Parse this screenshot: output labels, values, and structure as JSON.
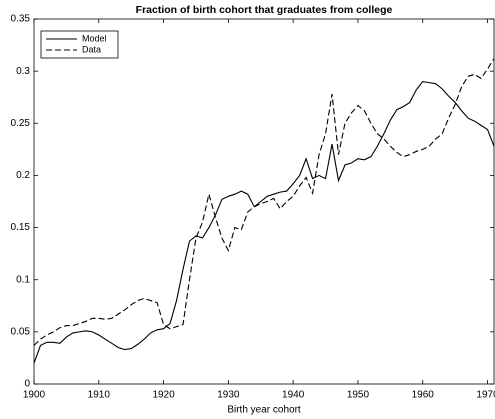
{
  "chart_data": {
    "type": "line",
    "title": "Fraction of birth cohort that graduates from college",
    "x_label": "Birth year cohort",
    "x": [
      1900,
      1901,
      1902,
      1903,
      1904,
      1905,
      1906,
      1907,
      1908,
      1909,
      1910,
      1911,
      1912,
      1913,
      1914,
      1915,
      1916,
      1917,
      1918,
      1919,
      1920,
      1921,
      1922,
      1923,
      1924,
      1925,
      1926,
      1927,
      1928,
      1929,
      1930,
      1931,
      1932,
      1933,
      1934,
      1935,
      1936,
      1937,
      1938,
      1939,
      1940,
      1941,
      1942,
      1943,
      1944,
      1945,
      1946,
      1947,
      1948,
      1949,
      1950,
      1951,
      1952,
      1953,
      1954,
      1955,
      1956,
      1957,
      1958,
      1959,
      1960,
      1961,
      1962,
      1963,
      1964,
      1965,
      1966,
      1967,
      1968,
      1969,
      1970,
      1971
    ],
    "series": [
      {
        "name": "Model",
        "color": "#000000",
        "dash": "solid",
        "values": [
          0.02,
          0.037,
          0.04,
          0.04,
          0.039,
          0.045,
          0.049,
          0.05,
          0.051,
          0.05,
          0.047,
          0.043,
          0.039,
          0.035,
          0.033,
          0.034,
          0.038,
          0.043,
          0.049,
          0.052,
          0.053,
          0.058,
          0.08,
          0.11,
          0.137,
          0.142,
          0.14,
          0.15,
          0.162,
          0.177,
          0.18,
          0.182,
          0.185,
          0.182,
          0.17,
          0.175,
          0.18,
          0.182,
          0.184,
          0.185,
          0.192,
          0.2,
          0.216,
          0.197,
          0.2,
          0.197,
          0.23,
          0.195,
          0.21,
          0.212,
          0.216,
          0.215,
          0.218,
          0.228,
          0.24,
          0.253,
          0.263,
          0.266,
          0.27,
          0.282,
          0.29,
          0.289,
          0.288,
          0.283,
          0.276,
          0.27,
          0.262,
          0.255,
          0.252,
          0.248,
          0.244,
          0.228
        ]
      },
      {
        "name": "Data",
        "color": "#000000",
        "dash": "dashed",
        "values": [
          0.037,
          0.043,
          0.047,
          0.05,
          0.054,
          0.056,
          0.056,
          0.058,
          0.06,
          0.063,
          0.063,
          0.062,
          0.063,
          0.067,
          0.071,
          0.076,
          0.08,
          0.082,
          0.08,
          0.078,
          0.057,
          0.053,
          0.055,
          0.057,
          0.1,
          0.14,
          0.155,
          0.182,
          0.16,
          0.14,
          0.128,
          0.15,
          0.148,
          0.165,
          0.17,
          0.173,
          0.175,
          0.178,
          0.168,
          0.175,
          0.18,
          0.19,
          0.198,
          0.183,
          0.22,
          0.24,
          0.278,
          0.22,
          0.25,
          0.26,
          0.267,
          0.262,
          0.25,
          0.24,
          0.235,
          0.228,
          0.222,
          0.218,
          0.22,
          0.223,
          0.225,
          0.228,
          0.235,
          0.24,
          0.255,
          0.268,
          0.285,
          0.295,
          0.297,
          0.293,
          0.302,
          0.312
        ]
      }
    ],
    "xlim": [
      1900,
      1971
    ],
    "xticks": [
      1900,
      1910,
      1920,
      1930,
      1940,
      1950,
      1960,
      1970
    ],
    "ylim": [
      0,
      0.35
    ],
    "yticks": [
      0,
      0.05,
      0.1,
      0.15,
      0.2,
      0.25,
      0.3,
      0.35
    ],
    "grid": false,
    "legend": "top-left"
  }
}
